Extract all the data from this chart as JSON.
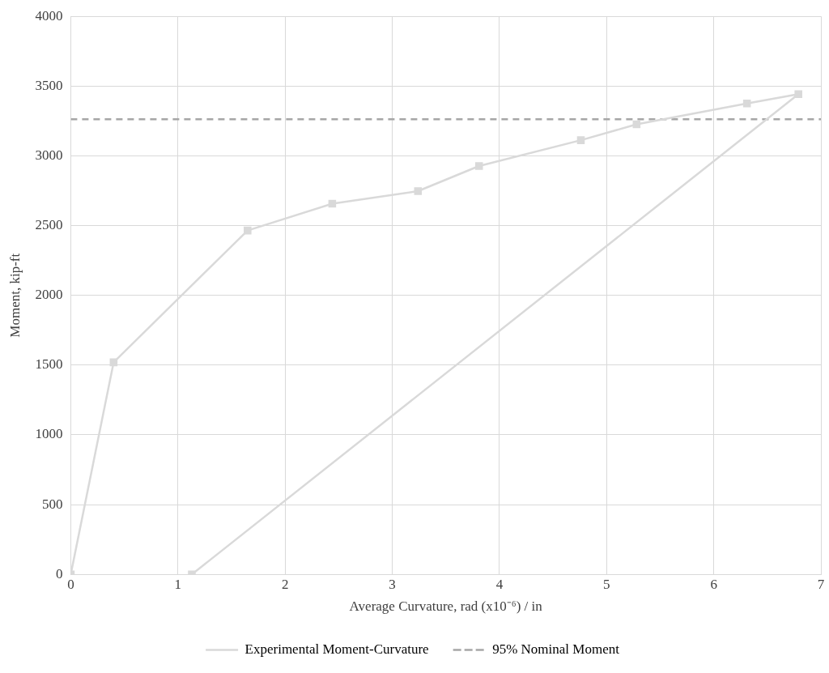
{
  "chart_data": {
    "type": "line",
    "xlabel": "Average Curvature, rad (x10⁻⁶) / in",
    "ylabel": "Moment, kip-ft",
    "xlim": [
      0,
      7
    ],
    "xticks": [
      0,
      1,
      2,
      3,
      4,
      5,
      6,
      7
    ],
    "ylim": [
      0,
      4000
    ],
    "yticks": [
      0,
      500,
      1000,
      1500,
      2000,
      2500,
      3000,
      3500,
      4000
    ],
    "series": [
      {
        "name": "Experimental Moment-Curvature",
        "color": "#d9d9d9",
        "x": [
          0,
          0.4,
          1.65,
          2.44,
          3.24,
          3.81,
          4.76,
          5.28,
          6.31,
          6.79,
          1.13
        ],
        "values": [
          0,
          1520,
          2465,
          2657,
          2747,
          2927,
          3112,
          3226,
          3376,
          3442,
          0
        ]
      }
    ],
    "ref_lines": [
      {
        "axis": "y",
        "value": 3262,
        "label": "95% Nominal Moment",
        "color": "#a6a6a6",
        "line_style": "dashed"
      }
    ],
    "marker": "square",
    "line_style": "solid",
    "grid": true,
    "legend": "bottom"
  }
}
